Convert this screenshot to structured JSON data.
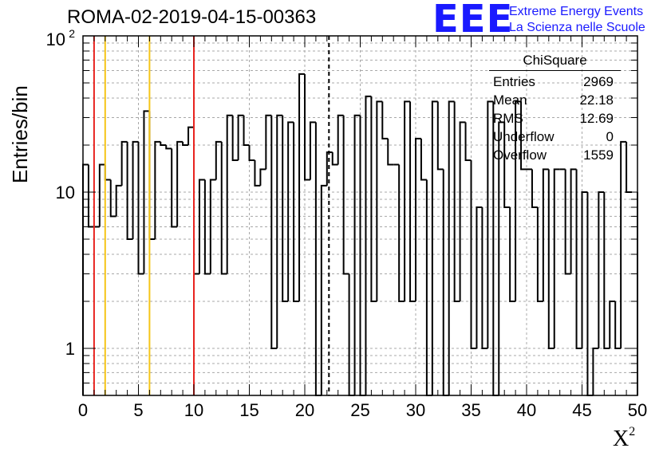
{
  "header": {
    "title": "ROMA-02-2019-04-15-00363"
  },
  "logo": {
    "mark": "EEE",
    "line1": "Extreme Energy Events",
    "line2": "La Scienza nelle Scuole"
  },
  "axes": {
    "ylabel": "Entries/bin",
    "xlabel": "X",
    "xlabel_sup": "2"
  },
  "stats": {
    "title": "ChiSquare",
    "rows": [
      {
        "label": "Entries",
        "value": "2969"
      },
      {
        "label": "Mean",
        "value": "22.18"
      },
      {
        "label": "RMS",
        "value": "12.69"
      },
      {
        "label": "Underflow",
        "value": "0"
      },
      {
        "label": "Overflow",
        "value": "1559"
      }
    ]
  },
  "colors": {
    "histogram": "#000000",
    "red_line": "#e8231f",
    "yellow_line": "#f5c518",
    "grid": "#a8a8a8"
  },
  "chart_data": {
    "type": "histogram",
    "title": "ROMA-02-2019-04-15-00363",
    "xlabel": "X2",
    "ylabel": "Entries/bin",
    "xlim": [
      0,
      50
    ],
    "ylim": [
      0.5,
      100
    ],
    "yscale": "log",
    "grid": true,
    "bin_width": 0.5,
    "x_ticks": [
      "0",
      "5",
      "10",
      "15",
      "20",
      "25",
      "30",
      "35",
      "40",
      "45",
      "50"
    ],
    "y_ticks": [
      "1",
      "10",
      "10^2"
    ],
    "counts": [
      15,
      6,
      6,
      15,
      12,
      7,
      11,
      21,
      5,
      21,
      3,
      33,
      5,
      21,
      20,
      19,
      6,
      21,
      20,
      26,
      3,
      12,
      3,
      12,
      21,
      3,
      31,
      16,
      31,
      20,
      16,
      11,
      14,
      31,
      1,
      31,
      2,
      28,
      2,
      57,
      12,
      28,
      0.5,
      11,
      18,
      15,
      31,
      3,
      0.5,
      31,
      0.5,
      41,
      2,
      38,
      22,
      15,
      15,
      2,
      38,
      2,
      22,
      12,
      0.5,
      38,
      14,
      0.5,
      38,
      2,
      28,
      16,
      1,
      8,
      1,
      38,
      0.5,
      28,
      8,
      2,
      38,
      14,
      14,
      8,
      2,
      14,
      1,
      14,
      14,
      3,
      14,
      1,
      10,
      0.5,
      1,
      10,
      1,
      2,
      1,
      21,
      10
    ],
    "vertical_lines": [
      {
        "x": 1,
        "style": "red"
      },
      {
        "x": 2,
        "style": "yellow"
      },
      {
        "x": 6,
        "style": "yellow"
      },
      {
        "x": 10,
        "style": "red"
      },
      {
        "x": 22.18,
        "style": "dashed-black"
      }
    ]
  }
}
